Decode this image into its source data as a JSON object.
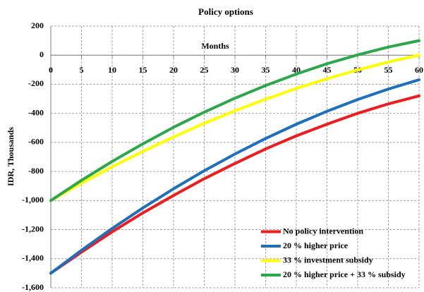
{
  "chart_data": {
    "type": "line",
    "title": "Policy options",
    "x_label": "Months",
    "y_label": "IDR, Thousands",
    "x": [
      0,
      5,
      10,
      15,
      20,
      25,
      30,
      35,
      40,
      45,
      50,
      55,
      60
    ],
    "series": [
      {
        "name": "No policy intervention",
        "color": "#ee1c1c",
        "values": [
          -1500,
          -1355,
          -1215,
          -1085,
          -965,
          -850,
          -745,
          -645,
          -555,
          -475,
          -400,
          -335,
          -280
        ]
      },
      {
        "name": "20 % higher price",
        "color": "#1f6fbf",
        "values": [
          -1500,
          -1342,
          -1192,
          -1051,
          -919,
          -795,
          -680,
          -573,
          -475,
          -386,
          -305,
          -233,
          -169
        ]
      },
      {
        "name": "33 % investment subsidy",
        "color": "#ffff00",
        "values": [
          -1000,
          -881,
          -768,
          -662,
          -563,
          -469,
          -383,
          -303,
          -229,
          -162,
          -102,
          -47,
          0
        ]
      },
      {
        "name": "20 % higher price + 33 % subsidy",
        "color": "#2ca84a",
        "values": [
          -1000,
          -861,
          -731,
          -610,
          -496,
          -392,
          -296,
          -209,
          -130,
          -59,
          2,
          56,
          100
        ]
      }
    ],
    "xlim": [
      0,
      60
    ],
    "xticks": [
      0,
      5,
      10,
      15,
      20,
      25,
      30,
      35,
      40,
      45,
      50,
      55,
      60
    ],
    "ylim": [
      -1600,
      200
    ],
    "yticks": [
      {
        "value": -1600,
        "label": "-1,600"
      },
      {
        "value": -1400,
        "label": "-1,400"
      },
      {
        "value": -1200,
        "label": "-1,200"
      },
      {
        "value": -1000,
        "label": "-1,000"
      },
      -800,
      -600,
      -400,
      -200,
      0,
      200
    ],
    "grid": true,
    "legend": "lower right"
  }
}
